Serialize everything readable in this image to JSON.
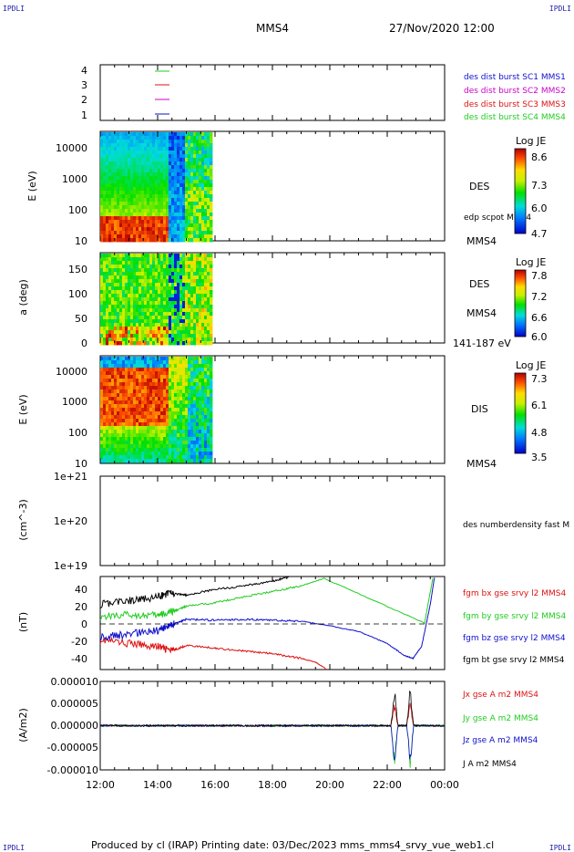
{
  "header": {
    "left_corner": "IPDLI",
    "right_corner": "IPDLI",
    "spacecraft": "MMS4",
    "datetime": "27/Nov/2020 12:00"
  },
  "footer": {
    "text": "Produced by cl (IRAP)   Printing date: 03/Dec/2023   mms_mms4_srvy_vue_web1.cl",
    "left_corner": "IPDLI",
    "right_corner": "IPDLI"
  },
  "colors": {
    "green": "#22cc22",
    "red": "#dd1111",
    "magenta": "#cc00cc",
    "blue": "#1010cc",
    "black": "#000000"
  },
  "chart_data": [
    {
      "type": "line",
      "panel": "availability",
      "yticks": [
        "1",
        "2",
        "3",
        "4"
      ],
      "legend": [
        {
          "label": "des dist burst SC1 MMS1",
          "color": "#1010cc"
        },
        {
          "label": "des dist burst SC2 MMS2",
          "color": "#cc00cc"
        },
        {
          "label": "des dist burst SC3 MMS3",
          "color": "#dd1111"
        },
        {
          "label": "des dist burst SC4 MMS4",
          "color": "#22cc22"
        }
      ]
    },
    {
      "type": "heatmap",
      "panel": "des-energy",
      "ylabel": "E (eV)",
      "yscale": "log",
      "ylim": [
        10,
        30000
      ],
      "yticks": [
        "10000",
        "1000",
        "100",
        "10"
      ],
      "right_labels": [
        "DES",
        "edp scpot MMS4",
        "MMS4"
      ],
      "colorbar": {
        "title": "Log JE",
        "ticks": [
          "8.6",
          "7.3",
          "6.0",
          "4.7"
        ],
        "range": [
          4.7,
          8.6
        ]
      },
      "data_extent_hours": [
        12.0,
        15.85
      ]
    },
    {
      "type": "heatmap",
      "panel": "des-pitch",
      "ylabel": "a (deg)",
      "ylim": [
        0,
        180
      ],
      "yticks": [
        "150",
        "100",
        "50",
        "0"
      ],
      "right_labels": [
        "DES",
        "MMS4",
        "141-187 eV"
      ],
      "colorbar": {
        "title": "Log JE",
        "ticks": [
          "7.8",
          "7.2",
          "6.6",
          "6.0"
        ],
        "range": [
          6.0,
          7.8
        ]
      },
      "data_extent_hours": [
        12.0,
        15.85
      ]
    },
    {
      "type": "heatmap",
      "panel": "dis-energy",
      "ylabel": "E (eV)",
      "yscale": "log",
      "ylim": [
        10,
        30000
      ],
      "yticks": [
        "10000",
        "1000",
        "100",
        "10"
      ],
      "right_labels": [
        "DIS",
        "MMS4"
      ],
      "colorbar": {
        "title": "Log JE",
        "ticks": [
          "7.3",
          "6.1",
          "4.8",
          "3.5"
        ],
        "range": [
          3.5,
          7.3
        ]
      },
      "data_extent_hours": [
        12.0,
        15.85
      ]
    },
    {
      "type": "line",
      "panel": "density",
      "ylabel": "(cm^-3)",
      "yscale": "log",
      "yticks": [
        "1e+21",
        "1e+20",
        "1e+19"
      ],
      "right_labels": [
        "des numberdensity fast M"
      ]
    },
    {
      "type": "line",
      "panel": "magnetic-field",
      "ylabel": "(nT)",
      "ylim": [
        -50,
        50
      ],
      "yticks": [
        "40",
        "20",
        "0",
        "-20",
        "-40"
      ],
      "series": [
        {
          "name": "fgm bx gse srvy l2 MMS4",
          "color": "#dd1111",
          "x": [
            12.0,
            13.0,
            14.0,
            14.5,
            15.0,
            16.0,
            17.0,
            18.0,
            19.0,
            19.5,
            19.9
          ],
          "values": [
            -18,
            -22,
            -25,
            -30,
            -24,
            -27,
            -30,
            -33,
            -38,
            -42,
            -50
          ]
        },
        {
          "name": "fgm by gse srvy l2 MMS4",
          "color": "#22cc22",
          "x": [
            12.0,
            13.0,
            14.0,
            14.5,
            15.0,
            16.0,
            17.0,
            18.0,
            19.0,
            19.8,
            23.3,
            23.6
          ],
          "values": [
            7,
            9,
            8,
            12,
            18,
            22,
            28,
            34,
            40,
            48,
            0,
            50
          ]
        },
        {
          "name": "fgm bz gse srvy l2 MMS4",
          "color": "#1010cc",
          "x": [
            12.0,
            13.0,
            14.0,
            14.5,
            15.0,
            16.0,
            17.0,
            18.0,
            19.0,
            20.0,
            21.0,
            22.0,
            22.6,
            22.9,
            23.2,
            23.5,
            23.65
          ],
          "values": [
            -15,
            -12,
            -8,
            -2,
            4,
            3,
            4,
            3,
            2,
            -3,
            -9,
            -22,
            -35,
            -38,
            -25,
            20,
            50
          ]
        },
        {
          "name": "fgm bt gse srvy l2 MMS4",
          "color": "#000000",
          "x": [
            12.0,
            13.0,
            14.0,
            14.5,
            15.0,
            16.0,
            17.0,
            18.0,
            18.6
          ],
          "values": [
            20,
            24,
            28,
            32,
            30,
            36,
            40,
            45,
            50
          ]
        }
      ]
    },
    {
      "type": "line",
      "panel": "current-density",
      "ylabel": "(A/m2)",
      "ylim": [
        -1e-05,
        1e-05
      ],
      "yticks": [
        "0.000010",
        "0.000005",
        "0.000000",
        "-0.000005",
        "-0.000010"
      ],
      "xticks": [
        "12:00",
        "14:00",
        "16:00",
        "18:00",
        "20:00",
        "22:00",
        "00:00"
      ],
      "series": [
        {
          "name": "Jx gse A m2 MMS4",
          "color": "#dd1111"
        },
        {
          "name": "Jy gse A m2 MMS4",
          "color": "#22cc22"
        },
        {
          "name": "Jz gse A m2 MMS4",
          "color": "#1010cc"
        },
        {
          "name": "J A m2 MMS4",
          "color": "#000000"
        }
      ]
    }
  ]
}
